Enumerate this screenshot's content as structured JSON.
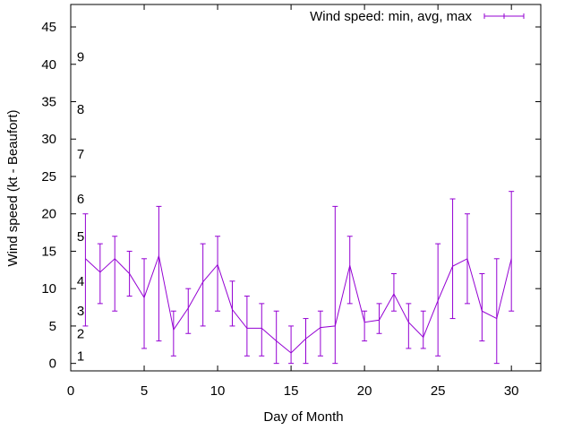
{
  "chart_data": {
    "type": "line",
    "title": "",
    "xlabel": "Day of Month",
    "ylabel": "Wind speed (kt - Beaufort)",
    "xlim": [
      0,
      32
    ],
    "ylim": [
      -1,
      48
    ],
    "xticks": [
      0,
      5,
      10,
      15,
      20,
      25,
      30
    ],
    "yticks": [
      0,
      5,
      10,
      15,
      20,
      25,
      30,
      35,
      40,
      45
    ],
    "grid": false,
    "legend_position": "top-right",
    "series": [
      {
        "name": "Wind speed: min, avg, max",
        "color": "#9400d3",
        "x": [
          1,
          2,
          3,
          4,
          5,
          6,
          7,
          8,
          9,
          10,
          11,
          12,
          13,
          14,
          15,
          16,
          17,
          18,
          19,
          20,
          21,
          22,
          23,
          24,
          25,
          26,
          27,
          28,
          29,
          30
        ],
        "avg": [
          14,
          12.2,
          14,
          12,
          8.8,
          14.4,
          4.5,
          7.4,
          10.9,
          13.2,
          7.2,
          4.7,
          4.7,
          3,
          1.4,
          3.3,
          4.8,
          5,
          13.1,
          5.5,
          5.8,
          9.3,
          5.5,
          3.5,
          8.4,
          13,
          14,
          7,
          6,
          14
        ],
        "min": [
          5,
          8,
          7,
          9,
          2,
          3,
          1,
          4,
          5,
          7,
          5,
          1,
          1,
          0,
          0,
          0,
          1,
          0,
          8,
          3,
          4,
          7,
          2,
          2,
          1,
          6,
          8,
          3,
          0,
          7
        ],
        "max": [
          20,
          16,
          17,
          15,
          14,
          21,
          7,
          10,
          16,
          17,
          11,
          9,
          8,
          7,
          5,
          6,
          7,
          21,
          17,
          7,
          8,
          12,
          8,
          7,
          16,
          22,
          20,
          12,
          14,
          23
        ]
      }
    ],
    "annotations": [
      {
        "text": "1",
        "y": 1
      },
      {
        "text": "2",
        "y": 4
      },
      {
        "text": "3",
        "y": 7
      },
      {
        "text": "4",
        "y": 11
      },
      {
        "text": "5",
        "y": 17
      },
      {
        "text": "6",
        "y": 22
      },
      {
        "text": "7",
        "y": 28
      },
      {
        "text": "8",
        "y": 34
      },
      {
        "text": "9",
        "y": 41
      }
    ]
  }
}
